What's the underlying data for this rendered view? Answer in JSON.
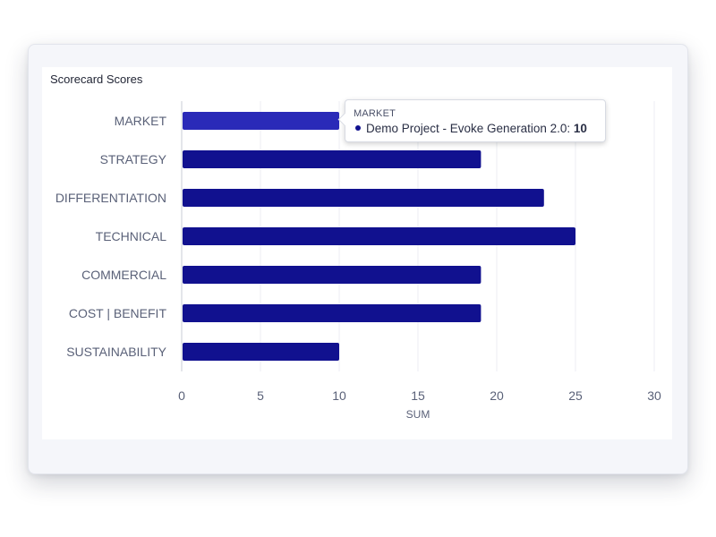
{
  "chart_data": {
    "type": "bar",
    "orientation": "horizontal",
    "title": "Scorecard Scores",
    "categories": [
      "MARKET",
      "STRATEGY",
      "DIFFERENTIATION",
      "TECHNICAL",
      "COMMERCIAL",
      "COST | BENEFIT",
      "SUSTAINABILITY"
    ],
    "series": [
      {
        "name": "Demo Project - Evoke Generation 2.0",
        "values": [
          10,
          19,
          23,
          25,
          19,
          19,
          10
        ]
      }
    ],
    "xlabel": "SUM",
    "ylabel": "",
    "xlim": [
      0,
      30
    ],
    "xticks": [
      0,
      5,
      10,
      15,
      20,
      25,
      30
    ],
    "grid": true,
    "colors": {
      "bar": "#11118f",
      "bar_highlight": "#2a2ab8",
      "grid": "#eceef3",
      "tick_text": "#5a6178",
      "axis": "#c9ccd6"
    }
  },
  "tooltip": {
    "category": "MARKET",
    "series_label": "Demo Project - Evoke Generation 2.0: ",
    "value": "10"
  }
}
